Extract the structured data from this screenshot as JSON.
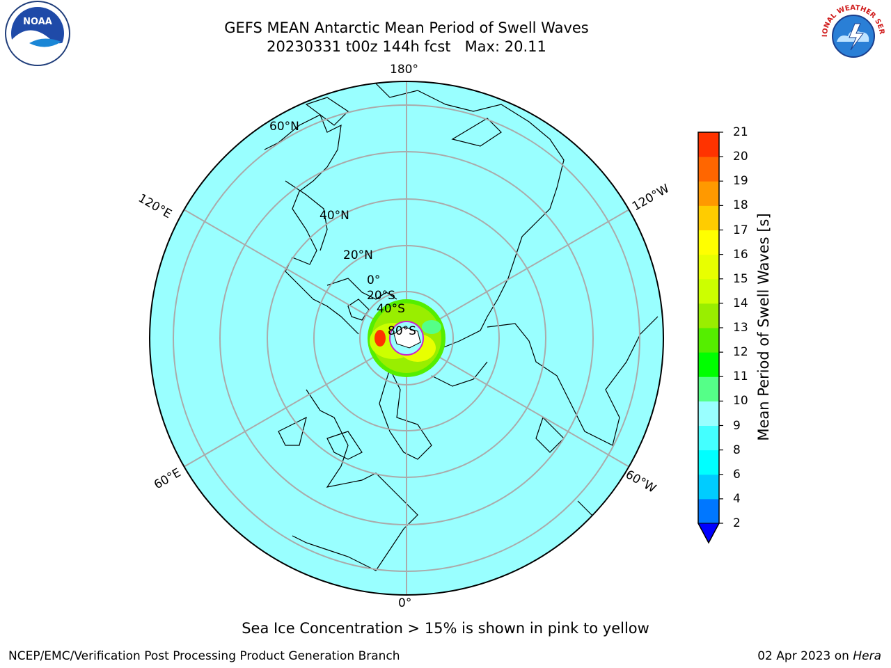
{
  "title": "GEFS MEAN Antarctic Mean Period of Swell Waves",
  "subtitle": "20230331 t00z 144h fcst   Max: 20.11",
  "logos": {
    "left": {
      "name": "noaa-logo",
      "text": "NOAA"
    },
    "right": {
      "name": "nws-logo",
      "text": "NATIONAL WEATHER SERVICE"
    }
  },
  "map": {
    "ocean_color": "#99ffff",
    "longitude_labels": {
      "lon_180": "180°",
      "lon_0": "0°",
      "lon_120e": "120°E",
      "lon_120w": "120°W",
      "lon_60e": "60°E",
      "lon_60w": "60°W"
    },
    "latitude_labels": {
      "lat_60n": "60°N",
      "lat_40n": "40°N",
      "lat_20n": "20°N",
      "lat_0": "0°",
      "lat_20s": "20°S",
      "lat_40s": "40°S",
      "lat_80s": "80°S"
    }
  },
  "colorbar": {
    "label": "Mean Period of Swell Waves [s]",
    "ticks": [
      "2",
      "4",
      "6",
      "8",
      "9",
      "10",
      "11",
      "12",
      "13",
      "14",
      "15",
      "16",
      "17",
      "18",
      "19",
      "20",
      "21"
    ],
    "colors": [
      "#0077ff",
      "#00ccff",
      "#00ffff",
      "#44ffff",
      "#99ffff",
      "#55ff88",
      "#00ff00",
      "#55ee00",
      "#99ee00",
      "#ccff00",
      "#e8ff00",
      "#ffff00",
      "#ffcc00",
      "#ff9900",
      "#ff6600",
      "#ff3300",
      "#ff0000"
    ],
    "extend_color": "#0000ff"
  },
  "caption": "Sea Ice Concentration > 15% is shown in pink to yellow",
  "footer": {
    "credit": "NCEP/EMC/Verification Post Processing Product Generation Branch",
    "date": "02 Apr 2023 on",
    "host": "Hera"
  }
}
